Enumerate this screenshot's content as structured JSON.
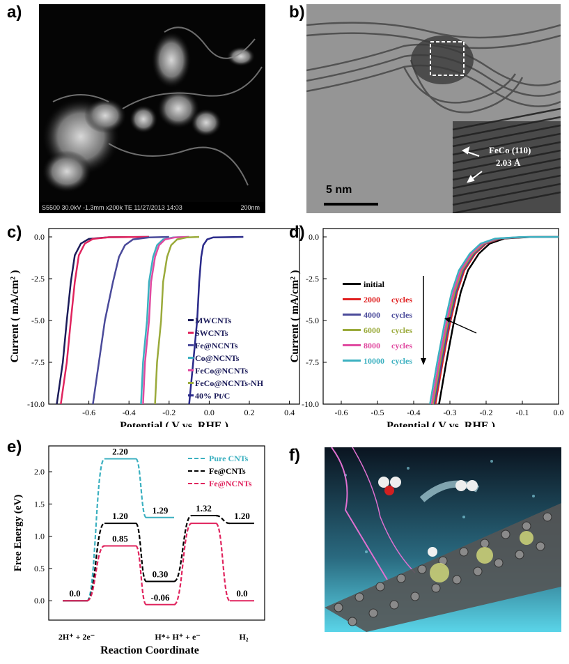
{
  "panels": {
    "a": {
      "label": "a)",
      "info_bar": "S5500 30.0kV -1.3mm x200k TE 11/27/2013 14:03",
      "scale": "200nm"
    },
    "b": {
      "label": "b)",
      "scale": "5 nm",
      "inset_text_1": "FeCo (110)",
      "inset_text_2": "2.03 Å"
    },
    "c": {
      "label": "c)"
    },
    "d": {
      "label": "d)"
    },
    "e": {
      "label": "e)"
    },
    "f": {
      "label": "f)"
    }
  },
  "chart_data": [
    {
      "id": "c",
      "type": "line",
      "xlabel": "Potential ( V vs. RHE )",
      "ylabel": "Current ( mA/cm² )",
      "xlim": [
        -0.8,
        0.45
      ],
      "ylim": [
        -10,
        0.5
      ],
      "xticks": [
        "-0.6",
        "-0.4",
        "-0.2",
        "0.0",
        "0.2",
        "0.4"
      ],
      "xtick_values": [
        -0.6,
        -0.4,
        -0.2,
        0.0,
        0.2,
        0.4
      ],
      "yticks": [
        "0.0",
        "-2.5",
        "-5.0",
        "-7.5",
        "-10.0"
      ],
      "ytick_values": [
        0,
        -2.5,
        -5,
        -7.5,
        -10
      ],
      "legend_position": "bottom-right",
      "series": [
        {
          "name": "MWCNTs",
          "color": "#1c1c5a",
          "x": [
            -0.76,
            -0.73,
            -0.71,
            -0.69,
            -0.67,
            -0.64,
            -0.6,
            -0.5,
            -0.3
          ],
          "y": [
            -10,
            -7.5,
            -5,
            -2.7,
            -1.1,
            -0.4,
            -0.12,
            -0.02,
            0
          ]
        },
        {
          "name": "SWCNTs",
          "color": "#e0245e",
          "x": [
            -0.74,
            -0.71,
            -0.69,
            -0.67,
            -0.65,
            -0.62,
            -0.58,
            -0.5,
            -0.3
          ],
          "y": [
            -10,
            -7.5,
            -5,
            -2.7,
            -1.1,
            -0.4,
            -0.12,
            -0.02,
            0
          ]
        },
        {
          "name": "Fe@NCNTs",
          "color": "#4a4a9a",
          "x": [
            -0.58,
            -0.55,
            -0.52,
            -0.48,
            -0.45,
            -0.42,
            -0.38,
            -0.3,
            -0.2
          ],
          "y": [
            -10,
            -7.5,
            -5,
            -2.7,
            -1.2,
            -0.5,
            -0.15,
            -0.03,
            0
          ]
        },
        {
          "name": "Co@NCNTs",
          "color": "#3bb0c0",
          "x": [
            -0.34,
            -0.33,
            -0.31,
            -0.3,
            -0.28,
            -0.26,
            -0.23,
            -0.18,
            -0.1
          ],
          "y": [
            -10,
            -7.5,
            -5,
            -2.7,
            -1.2,
            -0.5,
            -0.15,
            -0.03,
            0
          ]
        },
        {
          "name": "FeCo@NCNTs",
          "color": "#e04aa0",
          "x": [
            -0.33,
            -0.32,
            -0.3,
            -0.29,
            -0.27,
            -0.25,
            -0.22,
            -0.17,
            -0.1
          ],
          "y": [
            -10,
            -7.5,
            -5,
            -2.7,
            -1.2,
            -0.5,
            -0.15,
            -0.03,
            0
          ]
        },
        {
          "name": "FeCo@NCNTs-NH",
          "color": "#9aaa3a",
          "x": [
            -0.27,
            -0.26,
            -0.24,
            -0.23,
            -0.21,
            -0.19,
            -0.16,
            -0.11,
            -0.05
          ],
          "y": [
            -10,
            -7.5,
            -5,
            -2.7,
            -1.2,
            -0.5,
            -0.15,
            -0.03,
            0
          ]
        },
        {
          "name": "40% Pt/C",
          "color": "#2a2a8a",
          "x": [
            -0.1,
            -0.08,
            -0.06,
            -0.05,
            -0.04,
            -0.03,
            -0.01,
            0.02,
            0.17
          ],
          "y": [
            -10,
            -7.5,
            -5,
            -2.7,
            -1.2,
            -0.5,
            -0.15,
            -0.03,
            0
          ]
        }
      ]
    },
    {
      "id": "d",
      "type": "line",
      "xlabel": "Potential ( V vs. RHE )",
      "ylabel": "Current ( mA/cm² )",
      "xlim": [
        -0.65,
        0.0
      ],
      "ylim": [
        -10,
        0.5
      ],
      "xticks": [
        "-0.6",
        "-0.5",
        "-0.4",
        "-0.3",
        "-0.2",
        "-0.1",
        "0.0"
      ],
      "xtick_values": [
        -0.6,
        -0.5,
        -0.4,
        -0.3,
        -0.2,
        -0.1,
        0.0
      ],
      "yticks": [
        "0.0",
        "-2.5",
        "-5.0",
        "-7.5",
        "-10.0"
      ],
      "ytick_values": [
        0,
        -2.5,
        -5,
        -7.5,
        -10
      ],
      "legend_position": "top-left",
      "series": [
        {
          "name": "initial",
          "color": "#000000",
          "x": [
            -0.33,
            -0.31,
            -0.29,
            -0.27,
            -0.25,
            -0.22,
            -0.19,
            -0.15,
            -0.08,
            0.0
          ],
          "y": [
            -10,
            -7.5,
            -5.2,
            -3.3,
            -2.0,
            -1.0,
            -0.4,
            -0.1,
            -0.01,
            0
          ]
        },
        {
          "name": "2000",
          "color": "#e02020",
          "x": [
            -0.34,
            -0.32,
            -0.3,
            -0.28,
            -0.26,
            -0.23,
            -0.2,
            -0.16,
            -0.09,
            0.0
          ],
          "y": [
            -10,
            -7.5,
            -5.2,
            -3.3,
            -2.0,
            -1.0,
            -0.4,
            -0.1,
            -0.01,
            0
          ]
        },
        {
          "name": "4000",
          "color": "#4a4a9a",
          "x": [
            -0.343,
            -0.323,
            -0.303,
            -0.283,
            -0.263,
            -0.233,
            -0.203,
            -0.163,
            -0.093,
            0.0
          ],
          "y": [
            -10,
            -7.5,
            -5.2,
            -3.3,
            -2.0,
            -1.0,
            -0.4,
            -0.1,
            -0.01,
            0
          ]
        },
        {
          "name": "6000",
          "color": "#9aaa3a",
          "x": [
            -0.347,
            -0.327,
            -0.307,
            -0.287,
            -0.267,
            -0.237,
            -0.207,
            -0.167,
            -0.097,
            0.0
          ],
          "y": [
            -10,
            -7.5,
            -5.2,
            -3.3,
            -2.0,
            -1.0,
            -0.4,
            -0.1,
            -0.01,
            0
          ]
        },
        {
          "name": "8000",
          "color": "#e04aa0",
          "x": [
            -0.35,
            -0.33,
            -0.31,
            -0.29,
            -0.27,
            -0.24,
            -0.21,
            -0.17,
            -0.1,
            0.0
          ],
          "y": [
            -10,
            -7.5,
            -5.2,
            -3.3,
            -2.0,
            -1.0,
            -0.4,
            -0.1,
            -0.01,
            0
          ]
        },
        {
          "name": "10000",
          "color": "#3bb0c0",
          "x": [
            -0.355,
            -0.335,
            -0.315,
            -0.295,
            -0.275,
            -0.245,
            -0.215,
            -0.175,
            -0.105,
            0.0
          ],
          "y": [
            -10,
            -7.5,
            -5.2,
            -3.3,
            -2.0,
            -1.0,
            -0.4,
            -0.1,
            -0.01,
            0
          ]
        }
      ],
      "legend_labels": [
        {
          "num": "initial",
          "unit": ""
        },
        {
          "num": "2000",
          "unit": "cycles"
        },
        {
          "num": "4000",
          "unit": "cycles"
        },
        {
          "num": "6000",
          "unit": "cycles"
        },
        {
          "num": "8000",
          "unit": "cycles"
        },
        {
          "num": "10000",
          "unit": "cycles"
        }
      ]
    },
    {
      "id": "e",
      "type": "line",
      "xlabel": "Reaction Coordinate",
      "ylabel": "Free Energy (eV)",
      "ylim": [
        -0.3,
        2.4
      ],
      "yticks": [
        "0.0",
        "0.5",
        "1.0",
        "1.5",
        "2.0"
      ],
      "ytick_values": [
        0,
        0.5,
        1.0,
        1.5,
        2.0
      ],
      "xticks": [
        "2H⁺ + 2e⁻",
        "H*+ H⁺ + e⁻",
        "H₂"
      ],
      "legend_position": "top-right",
      "series": [
        {
          "name": "Pure CNTs",
          "color": "#3bb0c0",
          "levels": [
            0.0,
            2.2,
            1.29
          ],
          "labels": [
            "",
            "2.20",
            "1.29"
          ]
        },
        {
          "name": "Fe@CNTs",
          "color": "#000000",
          "levels": [
            0.0,
            1.2,
            0.3,
            1.32,
            1.2
          ],
          "labels": [
            "",
            "1.20",
            "0.30",
            "1.32",
            "1.20"
          ]
        },
        {
          "name": "Fe@NCNTs",
          "color": "#e0245e",
          "levels": [
            0.0,
            0.85,
            -0.06,
            1.2,
            0.0
          ],
          "labels": [
            "0.0",
            "0.85",
            "-0.06",
            "",
            "0.0"
          ]
        }
      ]
    }
  ]
}
